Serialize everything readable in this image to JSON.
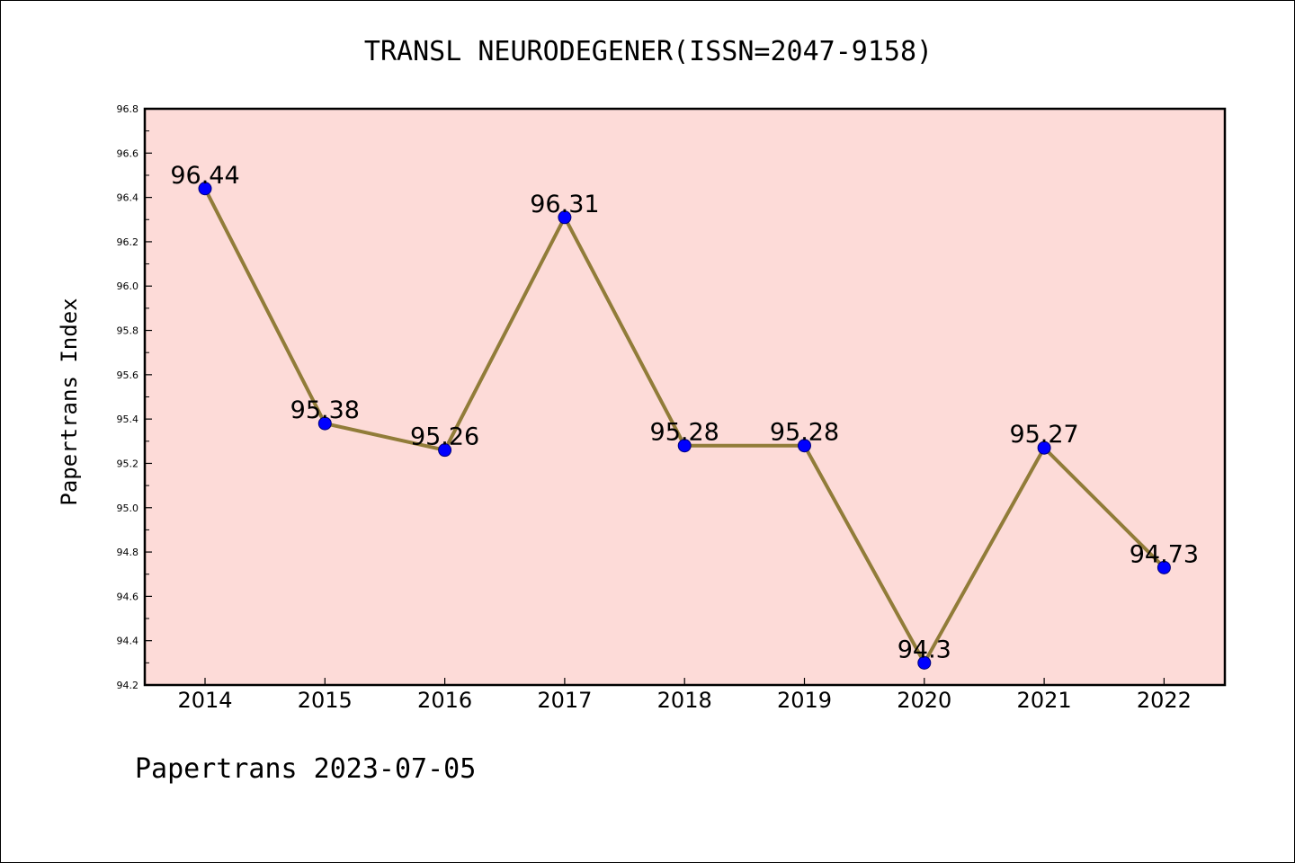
{
  "chart_data": {
    "type": "line",
    "title": "TRANSL NEURODEGENER(ISSN=2047-9158)",
    "ylabel": "Papertrans Index",
    "xlabel": "",
    "categories": [
      "2014",
      "2015",
      "2016",
      "2017",
      "2018",
      "2019",
      "2020",
      "2021",
      "2022"
    ],
    "series": [
      {
        "values": [
          96.44,
          95.38,
          95.26,
          96.31,
          95.28,
          95.28,
          94.3,
          95.27,
          94.73
        ]
      }
    ],
    "data_labels": [
      "96.44",
      "95.38",
      "95.26",
      "96.31",
      "95.28",
      "95.28",
      "94.3",
      "95.27",
      "94.73"
    ],
    "ylim": [
      94.2,
      96.8
    ],
    "yticks": [
      "94.2",
      "94.4",
      "94.6",
      "94.8",
      "95.0",
      "95.2",
      "95.4",
      "95.6",
      "95.8",
      "96.0",
      "96.2",
      "96.4",
      "96.6",
      "96.8"
    ],
    "grid": false,
    "legend": "none",
    "colors": {
      "plot_background": "#fddbd8",
      "line": "#917c39",
      "marker_fill": "#0000ff",
      "marker_stroke": "#00007a",
      "axis": "#000000"
    }
  },
  "footer": {
    "text": "Papertrans 2023-07-05"
  }
}
